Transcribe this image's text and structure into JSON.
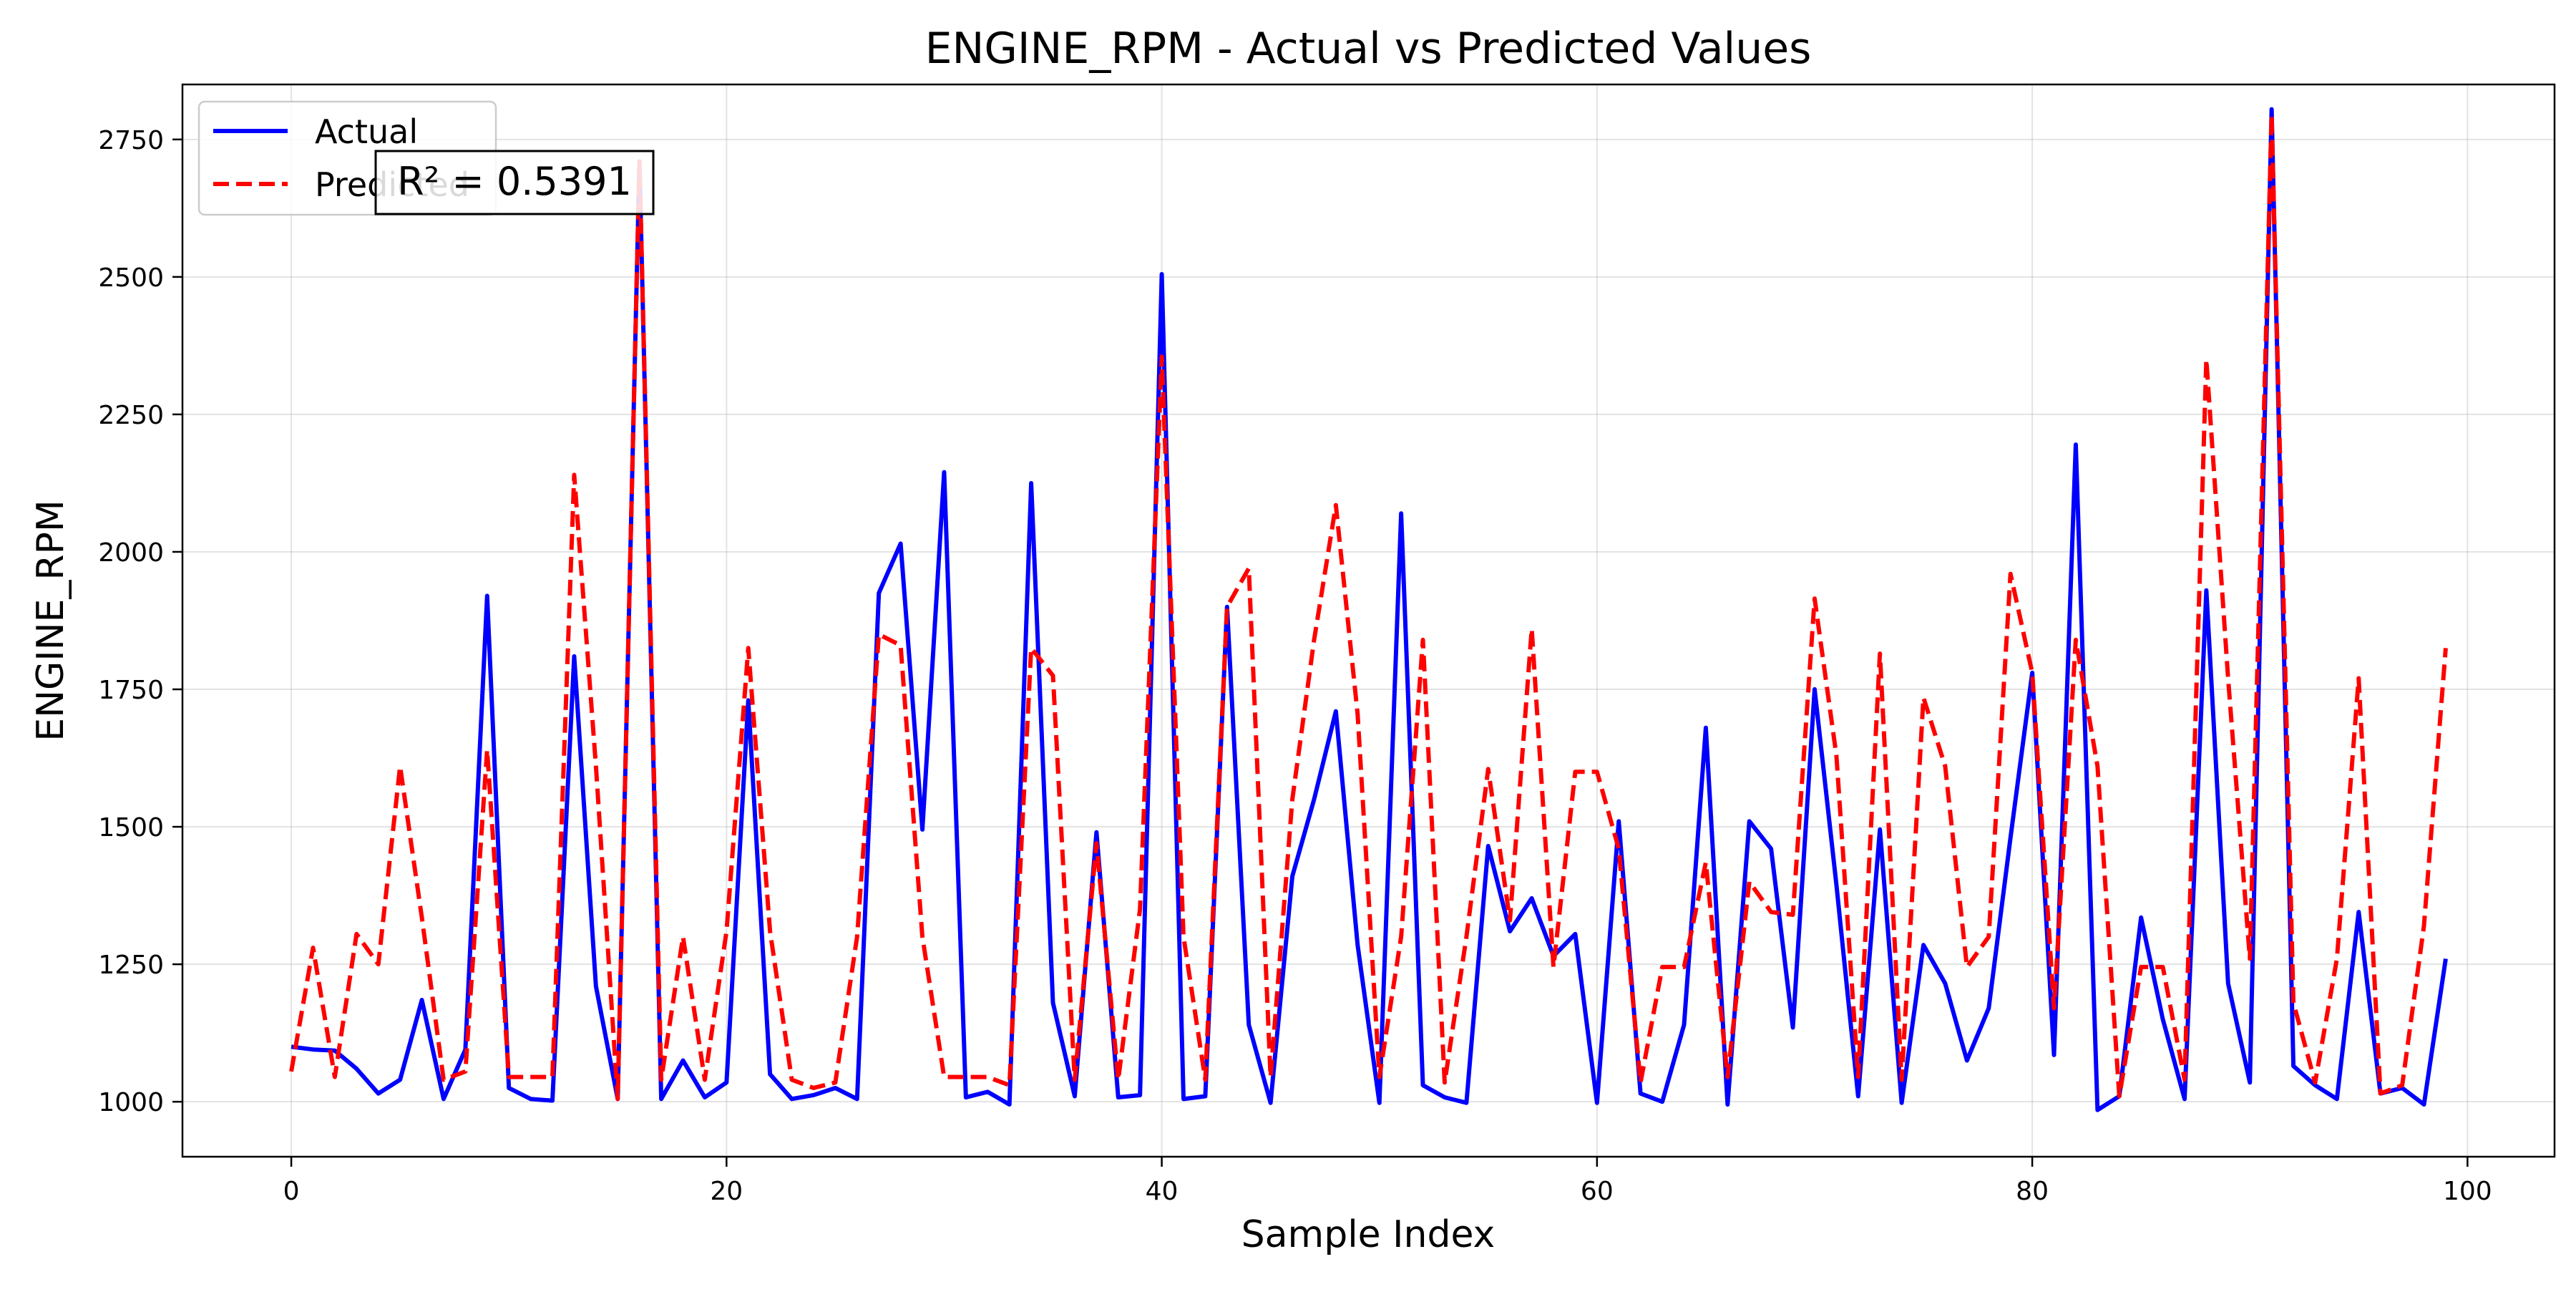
{
  "chart_data": {
    "type": "line",
    "title": "ENGINE_RPM - Actual vs Predicted Values",
    "xlabel": "Sample Index",
    "ylabel": "ENGINE_RPM",
    "xlim": [
      -5,
      104
    ],
    "ylim": [
      900,
      2850
    ],
    "x_ticks": [
      0,
      20,
      40,
      60,
      80,
      100
    ],
    "y_ticks": [
      1000,
      1250,
      1500,
      1750,
      2000,
      2250,
      2500,
      2750
    ],
    "grid": true,
    "legend_position": "top-left",
    "annotation": "R² = 0.5391",
    "x": [
      0,
      1,
      2,
      3,
      4,
      5,
      6,
      7,
      8,
      9,
      10,
      11,
      12,
      13,
      14,
      15,
      16,
      17,
      18,
      19,
      20,
      21,
      22,
      23,
      24,
      25,
      26,
      27,
      28,
      29,
      30,
      31,
      32,
      33,
      34,
      35,
      36,
      37,
      38,
      39,
      40,
      41,
      42,
      43,
      44,
      45,
      46,
      47,
      48,
      49,
      50,
      51,
      52,
      53,
      54,
      55,
      56,
      57,
      58,
      59,
      60,
      61,
      62,
      63,
      64,
      65,
      66,
      67,
      68,
      69,
      70,
      71,
      72,
      73,
      74,
      75,
      76,
      77,
      78,
      79,
      80,
      81,
      82,
      83,
      84,
      85,
      86,
      87,
      88,
      89,
      90,
      91,
      92,
      93,
      94,
      95,
      96,
      97,
      98,
      99
    ],
    "series": [
      {
        "name": "Actual",
        "color": "#0000ff",
        "style": "solid",
        "values": [
          1100,
          1095,
          1093,
          1060,
          1015,
          1040,
          1185,
          1005,
          1095,
          1920,
          1025,
          1005,
          1002,
          1810,
          1210,
          1005,
          2710,
          1005,
          1075,
          1008,
          1035,
          1730,
          1050,
          1005,
          1012,
          1025,
          1005,
          1925,
          2015,
          1495,
          2145,
          1008,
          1018,
          995,
          2125,
          1180,
          1010,
          1490,
          1008,
          1012,
          2505,
          1005,
          1010,
          1900,
          1140,
          998,
          1410,
          1550,
          1710,
          1285,
          998,
          2070,
          1030,
          1008,
          998,
          1465,
          1310,
          1370,
          1265,
          1305,
          998,
          1510,
          1015,
          1000,
          1140,
          1680,
          995,
          1510,
          1460,
          1135,
          1750,
          1395,
          1010,
          1495,
          998,
          1285,
          1215,
          1075,
          1170,
          1480,
          1780,
          1085,
          2195,
          985,
          1010,
          1335,
          1150,
          1005,
          1930,
          1215,
          1035,
          2805,
          1065,
          1030,
          1005,
          1345,
          1015,
          1025,
          995,
          1260
        ]
      },
      {
        "name": "Predicted",
        "color": "#ff0000",
        "style": "dashed",
        "values": [
          1055,
          1280,
          1045,
          1305,
          1250,
          1610,
          1335,
          1040,
          1055,
          1640,
          1045,
          1045,
          1045,
          2140,
          1610,
          1005,
          2710,
          1040,
          1300,
          1040,
          1310,
          1825,
          1310,
          1040,
          1025,
          1035,
          1300,
          1850,
          1830,
          1300,
          1045,
          1045,
          1045,
          1030,
          1825,
          1775,
          1040,
          1470,
          1040,
          1350,
          2355,
          1300,
          1040,
          1900,
          1970,
          1045,
          1550,
          1840,
          2085,
          1705,
          1045,
          1300,
          1840,
          1035,
          1300,
          1605,
          1330,
          1860,
          1245,
          1600,
          1600,
          1460,
          1035,
          1245,
          1245,
          1435,
          1045,
          1400,
          1345,
          1340,
          1915,
          1630,
          1045,
          1815,
          1040,
          1735,
          1610,
          1245,
          1300,
          1960,
          1780,
          1170,
          1840,
          1610,
          1010,
          1245,
          1245,
          1040,
          2350,
          1770,
          1260,
          2795,
          1180,
          1035,
          1260,
          1770,
          1015,
          1030,
          1320,
          1825
        ]
      }
    ]
  }
}
